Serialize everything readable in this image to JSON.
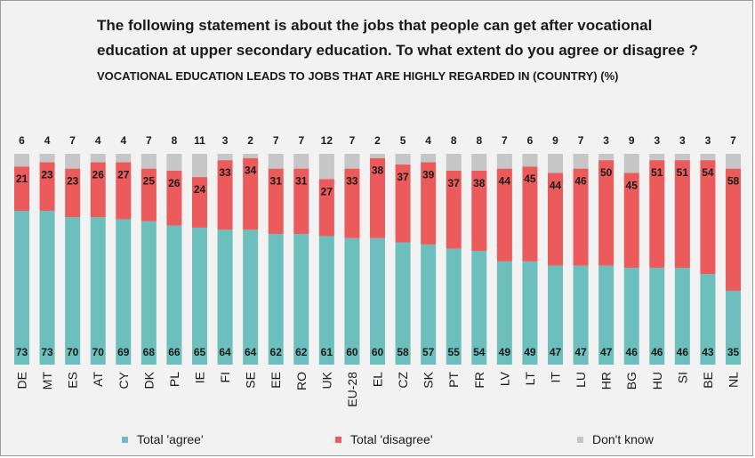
{
  "title": "The following statement is about the jobs that people can get after vocational education at upper secondary education. To what extent do you agree or disagree ?",
  "subtitle": "Vocational education leads to jobs that are highly regarded in (country) (%)",
  "colors": {
    "agree": "#6cbfbd",
    "disagree": "#ec5b5b",
    "dontknow": "#c6c6c6"
  },
  "legend": [
    {
      "label": "Total 'agree'",
      "color_key": "agree"
    },
    {
      "label": "Total 'disagree'",
      "color_key": "disagree"
    },
    {
      "label": "Don't know",
      "color_key": "dontknow"
    }
  ],
  "chart_data": {
    "type": "bar",
    "stacked": true,
    "orientation": "vertical",
    "ylim": [
      0,
      100
    ],
    "categories": [
      "DE",
      "MT",
      "ES",
      "AT",
      "CY",
      "DK",
      "PL",
      "IE",
      "FI",
      "SE",
      "EE",
      "RO",
      "UK",
      "EU-28",
      "EL",
      "CZ",
      "SK",
      "PT",
      "FR",
      "LV",
      "LT",
      "IT",
      "LU",
      "HR",
      "BG",
      "HU",
      "SI",
      "BE",
      "NL"
    ],
    "series": [
      {
        "name": "Total 'agree'",
        "values": [
          73,
          73,
          70,
          70,
          69,
          68,
          66,
          65,
          64,
          64,
          62,
          62,
          61,
          60,
          60,
          58,
          57,
          55,
          54,
          49,
          49,
          47,
          47,
          47,
          46,
          46,
          46,
          43,
          35
        ]
      },
      {
        "name": "Total 'disagree'",
        "values": [
          21,
          23,
          23,
          26,
          27,
          25,
          26,
          24,
          33,
          34,
          31,
          31,
          27,
          33,
          38,
          37,
          39,
          37,
          38,
          44,
          45,
          44,
          46,
          50,
          45,
          51,
          51,
          54,
          58
        ]
      },
      {
        "name": "Don't know",
        "values": [
          6,
          4,
          7,
          4,
          4,
          7,
          8,
          11,
          3,
          2,
          7,
          7,
          12,
          7,
          2,
          5,
          4,
          8,
          8,
          7,
          6,
          9,
          7,
          3,
          9,
          3,
          3,
          3,
          7
        ]
      }
    ],
    "grid": false,
    "legend_position": "bottom"
  }
}
